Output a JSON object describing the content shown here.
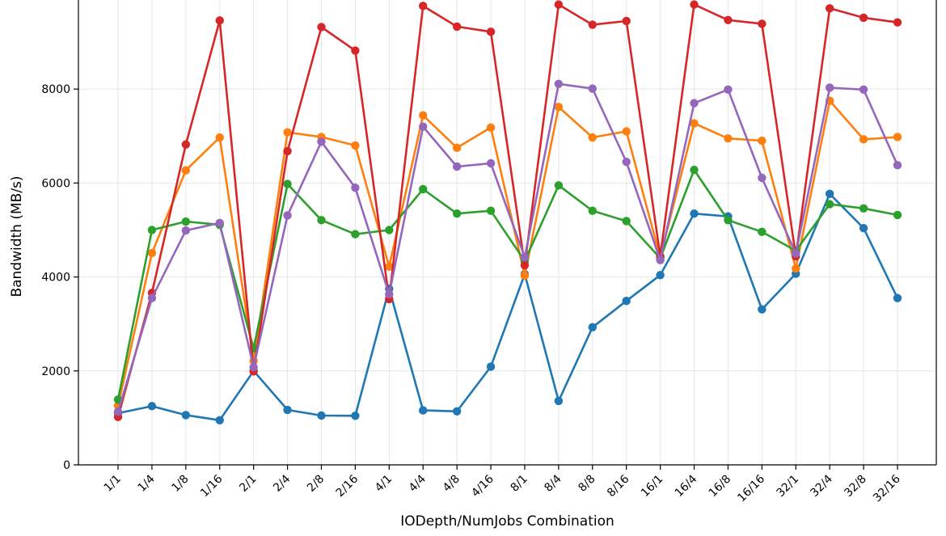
{
  "chart_data": {
    "type": "line",
    "title": "",
    "xlabel": "IODepth/NumJobs Combination",
    "ylabel": "Bandwidth (MB/s)",
    "ylim": [
      0,
      10000
    ],
    "yticks": [
      0,
      2000,
      4000,
      6000,
      8000
    ],
    "grid": true,
    "categories": [
      "1/1",
      "1/4",
      "1/8",
      "1/16",
      "2/1",
      "2/4",
      "2/8",
      "2/16",
      "4/1",
      "4/4",
      "4/8",
      "4/16",
      "8/1",
      "8/4",
      "8/8",
      "8/16",
      "16/1",
      "16/4",
      "16/8",
      "16/16",
      "32/1",
      "32/4",
      "32/8",
      "32/16"
    ],
    "series": [
      {
        "color": "#1f77b4",
        "values": [
          1100,
          1250,
          1060,
          950,
          2000,
          1170,
          1050,
          1045,
          3750,
          1160,
          1140,
          2090,
          4060,
          1360,
          2930,
          3490,
          4040,
          5350,
          5290,
          3310,
          4070,
          5770,
          5040,
          3550
        ]
      },
      {
        "color": "#ff7f0e",
        "values": [
          1260,
          4510,
          6270,
          6970,
          2210,
          7080,
          6980,
          6800,
          4220,
          7440,
          6750,
          7180,
          4030,
          7620,
          6970,
          7100,
          4420,
          7270,
          6950,
          6900,
          4180,
          7750,
          6930,
          6980
        ]
      },
      {
        "color": "#2ca02c",
        "values": [
          1390,
          5000,
          5180,
          5110,
          2480,
          5980,
          5210,
          4910,
          5000,
          5870,
          5350,
          5410,
          4340,
          5950,
          5410,
          5190,
          4400,
          6280,
          5210,
          4960,
          4560,
          5550,
          5460,
          5320
        ]
      },
      {
        "color": "#d62728",
        "values": [
          1020,
          3660,
          6820,
          9460,
          1990,
          6680,
          9320,
          8820,
          3530,
          9770,
          9330,
          9220,
          4250,
          9800,
          9370,
          9450,
          4440,
          9800,
          9470,
          9390,
          4440,
          9720,
          9520,
          9420
        ]
      },
      {
        "color": "#9467bd",
        "values": [
          1130,
          3550,
          4990,
          5150,
          2080,
          5310,
          6880,
          5900,
          3630,
          7200,
          6350,
          6420,
          4420,
          8110,
          8010,
          6450,
          4360,
          7700,
          7990,
          6110,
          4500,
          8030,
          7990,
          6380
        ]
      }
    ]
  }
}
